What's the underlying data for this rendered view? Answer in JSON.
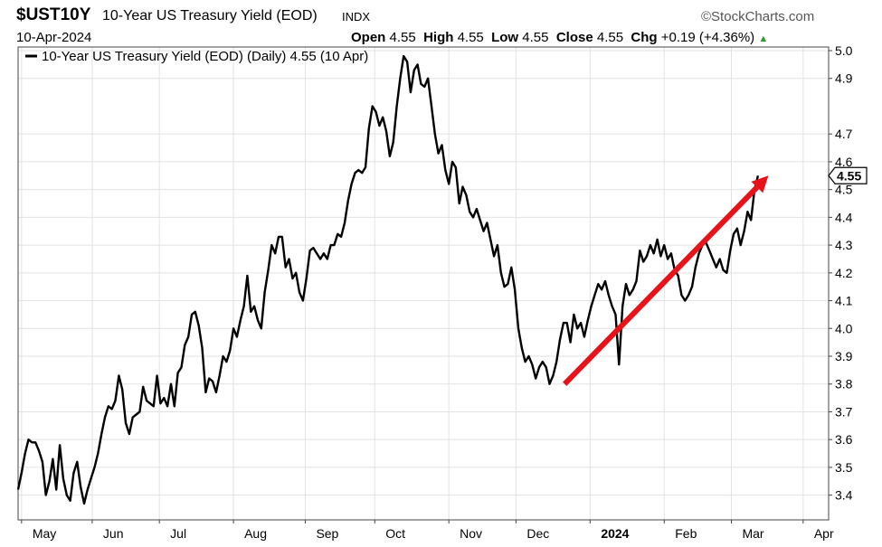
{
  "header": {
    "symbol": "$UST10Y",
    "name": "10-Year US Treasury Yield (EOD)",
    "exchange": "INDX",
    "source": "©StockCharts.com",
    "date": "10-Apr-2024",
    "open_label": "Open",
    "open": "4.55",
    "high_label": "High",
    "high": "4.55",
    "low_label": "Low",
    "low": "4.55",
    "close_label": "Close",
    "close": "4.55",
    "chg_label": "Chg",
    "chg": "+0.19 (+4.36%)",
    "chg_arrow": "▲"
  },
  "colors": {
    "line": "#000000",
    "arrow": "#e8131a",
    "grid": "#e2e2e2",
    "up": "#2e9b2e"
  },
  "chart_data": {
    "type": "line",
    "legend": "10-Year US Treasury Yield (EOD) (Daily) 4.55 (10 Apr)",
    "legend_position": "top-left",
    "last_value_label": "4.55",
    "ylim": [
      3.35,
      5.0
    ],
    "y_ticks": [
      "5.0",
      "4.9",
      "4.7",
      "4.6",
      "4.5",
      "4.4",
      "4.3",
      "4.2",
      "4.1",
      "4.0",
      "3.9",
      "3.8",
      "3.7",
      "3.6",
      "3.5",
      "3.4"
    ],
    "x_ticks": [
      {
        "label": "May",
        "x": 1.5
      },
      {
        "label": "Jun",
        "x": 32
      },
      {
        "label": "Jul",
        "x": 61
      },
      {
        "label": "Aug",
        "x": 93
      },
      {
        "label": "Sep",
        "x": 124
      },
      {
        "label": "Oct",
        "x": 154
      },
      {
        "label": "Nov",
        "x": 186
      },
      {
        "label": "Dec",
        "x": 215
      },
      {
        "label": "2024",
        "x": 247,
        "bold": true
      },
      {
        "label": "Feb",
        "x": 279
      },
      {
        "label": "Mar",
        "x": 308
      },
      {
        "label": "Apr",
        "x": 339
      }
    ],
    "xlim": [
      0,
      350
    ],
    "grid": true,
    "series": [
      {
        "values": [
          [
            0,
            3.42
          ],
          [
            1.5,
            3.48
          ],
          [
            3,
            3.55
          ],
          [
            4.5,
            3.6
          ],
          [
            6,
            3.59
          ],
          [
            7.5,
            3.59
          ],
          [
            9,
            3.56
          ],
          [
            10.5,
            3.52
          ],
          [
            12,
            3.4
          ],
          [
            13.5,
            3.45
          ],
          [
            15,
            3.53
          ],
          [
            16.5,
            3.42
          ],
          [
            18,
            3.58
          ],
          [
            19.5,
            3.46
          ],
          [
            21,
            3.4
          ],
          [
            22.5,
            3.38
          ],
          [
            24,
            3.48
          ],
          [
            25.5,
            3.52
          ],
          [
            27,
            3.43
          ],
          [
            28.5,
            3.37
          ],
          [
            30,
            3.42
          ],
          [
            31.5,
            3.46
          ],
          [
            33,
            3.5
          ],
          [
            34.5,
            3.55
          ],
          [
            36,
            3.62
          ],
          [
            37.5,
            3.68
          ],
          [
            39,
            3.72
          ],
          [
            40.5,
            3.71
          ],
          [
            42,
            3.74
          ],
          [
            43.5,
            3.83
          ],
          [
            45,
            3.78
          ],
          [
            46.5,
            3.66
          ],
          [
            48,
            3.62
          ],
          [
            49.5,
            3.68
          ],
          [
            51,
            3.69
          ],
          [
            52.5,
            3.7
          ],
          [
            54,
            3.79
          ],
          [
            55.5,
            3.74
          ],
          [
            57,
            3.73
          ],
          [
            58.5,
            3.72
          ],
          [
            60,
            3.83
          ],
          [
            61.5,
            3.73
          ],
          [
            63,
            3.75
          ],
          [
            64.5,
            3.72
          ],
          [
            66,
            3.8
          ],
          [
            67.5,
            3.72
          ],
          [
            69,
            3.84
          ],
          [
            70.5,
            3.86
          ],
          [
            72,
            3.94
          ],
          [
            73.5,
            3.97
          ],
          [
            75,
            4.05
          ],
          [
            76.5,
            4.06
          ],
          [
            78,
            4.01
          ],
          [
            79.5,
            3.93
          ],
          [
            81,
            3.77
          ],
          [
            82.5,
            3.82
          ],
          [
            84,
            3.81
          ],
          [
            85.5,
            3.77
          ],
          [
            87,
            3.83
          ],
          [
            88.5,
            3.9
          ],
          [
            90,
            3.88
          ],
          [
            91.5,
            3.92
          ],
          [
            93,
            4.0
          ],
          [
            94.5,
            3.97
          ],
          [
            96,
            4.03
          ],
          [
            97.5,
            4.08
          ],
          [
            99,
            4.19
          ],
          [
            100.5,
            4.06
          ],
          [
            102,
            4.08
          ],
          [
            103.5,
            4.03
          ],
          [
            105,
            4.0
          ],
          [
            106.5,
            4.13
          ],
          [
            108,
            4.21
          ],
          [
            109.5,
            4.3
          ],
          [
            111,
            4.27
          ],
          [
            112.5,
            4.33
          ],
          [
            114,
            4.33
          ],
          [
            115.5,
            4.22
          ],
          [
            117,
            4.25
          ],
          [
            118.5,
            4.18
          ],
          [
            120,
            4.2
          ],
          [
            121.5,
            4.13
          ],
          [
            123,
            4.1
          ],
          [
            124.5,
            4.18
          ],
          [
            126,
            4.28
          ],
          [
            127.5,
            4.29
          ],
          [
            129,
            4.27
          ],
          [
            130.5,
            4.25
          ],
          [
            132,
            4.27
          ],
          [
            133.5,
            4.25
          ],
          [
            135,
            4.3
          ],
          [
            136.5,
            4.3
          ],
          [
            138,
            4.34
          ],
          [
            139.5,
            4.33
          ],
          [
            141,
            4.38
          ],
          [
            142.5,
            4.46
          ],
          [
            144,
            4.52
          ],
          [
            145.5,
            4.56
          ],
          [
            147,
            4.57
          ],
          [
            148.5,
            4.56
          ],
          [
            150,
            4.58
          ],
          [
            151.5,
            4.72
          ],
          [
            153,
            4.8
          ],
          [
            154.5,
            4.78
          ],
          [
            156,
            4.73
          ],
          [
            157.5,
            4.76
          ],
          [
            159,
            4.71
          ],
          [
            160.5,
            4.62
          ],
          [
            162,
            4.67
          ],
          [
            163.5,
            4.8
          ],
          [
            165,
            4.9
          ],
          [
            166.5,
            4.98
          ],
          [
            168,
            4.96
          ],
          [
            169.5,
            4.85
          ],
          [
            171,
            4.93
          ],
          [
            172.5,
            4.95
          ],
          [
            174,
            4.88
          ],
          [
            175.5,
            4.87
          ],
          [
            177,
            4.9
          ],
          [
            178.5,
            4.8
          ],
          [
            180,
            4.7
          ],
          [
            181.5,
            4.63
          ],
          [
            183,
            4.66
          ],
          [
            184.5,
            4.57
          ],
          [
            186,
            4.52
          ],
          [
            187.5,
            4.6
          ],
          [
            189,
            4.58
          ],
          [
            190.5,
            4.45
          ],
          [
            192,
            4.51
          ],
          [
            193.5,
            4.48
          ],
          [
            195,
            4.42
          ],
          [
            196.5,
            4.4
          ],
          [
            198,
            4.43
          ],
          [
            199.5,
            4.39
          ],
          [
            201,
            4.35
          ],
          [
            202.5,
            4.38
          ],
          [
            204,
            4.32
          ],
          [
            205.5,
            4.26
          ],
          [
            207,
            4.3
          ],
          [
            208.5,
            4.2
          ],
          [
            210,
            4.15
          ],
          [
            211.5,
            4.16
          ],
          [
            213,
            4.22
          ],
          [
            214.5,
            4.14
          ],
          [
            216,
            4.0
          ],
          [
            217.5,
            3.93
          ],
          [
            219,
            3.88
          ],
          [
            220.5,
            3.9
          ],
          [
            222,
            3.87
          ],
          [
            223.5,
            3.82
          ],
          [
            225,
            3.86
          ],
          [
            226.5,
            3.88
          ],
          [
            228,
            3.86
          ],
          [
            229.5,
            3.8
          ],
          [
            231,
            3.83
          ],
          [
            232.5,
            3.88
          ],
          [
            234,
            3.96
          ],
          [
            235.5,
            4.02
          ],
          [
            237,
            4.02
          ],
          [
            238.5,
            3.95
          ],
          [
            240,
            4.05
          ],
          [
            241.5,
            4.0
          ],
          [
            243,
            4.02
          ],
          [
            244.5,
            3.97
          ],
          [
            246,
            4.03
          ],
          [
            247.5,
            4.08
          ],
          [
            249,
            4.12
          ],
          [
            250.5,
            4.16
          ],
          [
            252,
            4.14
          ],
          [
            253.5,
            4.17
          ],
          [
            255,
            4.12
          ],
          [
            256.5,
            4.08
          ],
          [
            258,
            4.05
          ],
          [
            259.5,
            3.87
          ],
          [
            261,
            4.08
          ],
          [
            262.5,
            4.16
          ],
          [
            264,
            4.12
          ],
          [
            265.5,
            4.14
          ],
          [
            267,
            4.17
          ],
          [
            268.5,
            4.28
          ],
          [
            270,
            4.24
          ],
          [
            271.5,
            4.26
          ],
          [
            273,
            4.3
          ],
          [
            274.5,
            4.27
          ],
          [
            276,
            4.32
          ],
          [
            277.5,
            4.26
          ],
          [
            279,
            4.3
          ],
          [
            280.5,
            4.25
          ],
          [
            282,
            4.27
          ],
          [
            283.5,
            4.21
          ],
          [
            285,
            4.19
          ],
          [
            286.5,
            4.12
          ],
          [
            288,
            4.1
          ],
          [
            289.5,
            4.12
          ],
          [
            291,
            4.15
          ],
          [
            292.5,
            4.22
          ],
          [
            294,
            4.27
          ],
          [
            295.5,
            4.3
          ],
          [
            297,
            4.31
          ],
          [
            298.5,
            4.28
          ],
          [
            300,
            4.25
          ],
          [
            301.5,
            4.22
          ],
          [
            303,
            4.25
          ],
          [
            304.5,
            4.21
          ],
          [
            306,
            4.2
          ],
          [
            307.5,
            4.28
          ],
          [
            309,
            4.34
          ],
          [
            310.5,
            4.36
          ],
          [
            312,
            4.3
          ],
          [
            313.5,
            4.35
          ],
          [
            315,
            4.42
          ],
          [
            316.5,
            4.39
          ],
          [
            318,
            4.5
          ],
          [
            319.5,
            4.55
          ]
        ]
      }
    ],
    "annotations": [
      {
        "type": "arrow",
        "from": [
          236,
          3.8
        ],
        "to": [
          324,
          4.55
        ],
        "color": "#e8131a"
      }
    ]
  }
}
